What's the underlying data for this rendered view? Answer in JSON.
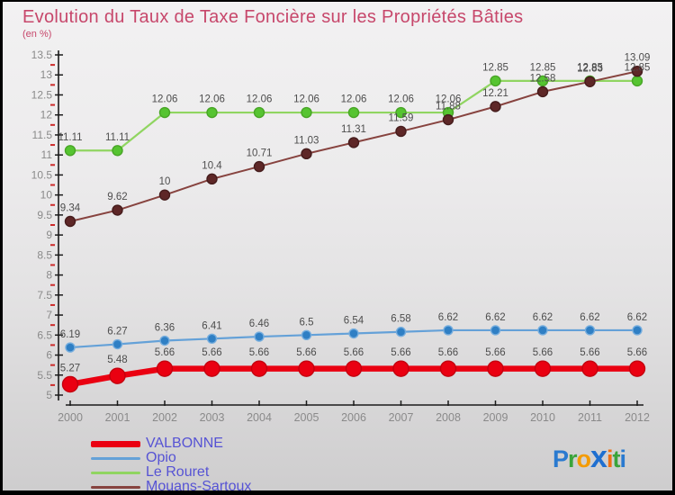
{
  "header": {
    "title": "Evolution du Taux de Taxe Foncière sur les Propriétés Bâties",
    "subtitle": "(en %)",
    "title_color": "#c7476b"
  },
  "chart_data": {
    "type": "line",
    "title": "Evolution du Taux de Taxe Foncière sur les Propriétés Bâties",
    "subtitle": "(en %)",
    "x_labels": [
      "2000",
      "2001",
      "2002",
      "2003",
      "2004",
      "2005",
      "2006",
      "2007",
      "2008",
      "2009",
      "2010",
      "2011",
      "2012"
    ],
    "ylim": [
      5,
      13.5
    ],
    "ytick_step": 0.5,
    "yminor_step": 0.25,
    "grid": false,
    "legend_position": "bottom-left",
    "axis_style": {
      "axis_color": "#1a1a1a",
      "tick_label_color": "#8a8a8a",
      "minor_tick_color": "#cc2a2a",
      "data_label_color": "#4d4d4d"
    },
    "series": [
      {
        "name": "VALBONNE",
        "line_color": "#ea0011",
        "marker_fill": "#ea0011",
        "marker_stroke": "#c4000e",
        "line_width": 6.5,
        "marker_radius": 8.5,
        "values": [
          5.27,
          5.48,
          5.66,
          5.66,
          5.66,
          5.66,
          5.66,
          5.66,
          5.66,
          5.66,
          5.66,
          5.66,
          5.66
        ]
      },
      {
        "name": "Opio",
        "line_color": "#64a1d8",
        "marker_fill": "#2f7fc4",
        "marker_stroke": "#77aede",
        "line_width": 2.2,
        "marker_radius": 5,
        "values": [
          6.19,
          6.27,
          6.36,
          6.41,
          6.46,
          6.5,
          6.54,
          6.58,
          6.62,
          6.62,
          6.62,
          6.62,
          6.62
        ]
      },
      {
        "name": "Le Rouret",
        "line_color": "#90d561",
        "marker_fill": "#56c431",
        "marker_stroke": "#48a526",
        "line_width": 2.2,
        "marker_radius": 5.5,
        "values": [
          11.11,
          11.11,
          12.06,
          12.06,
          12.06,
          12.06,
          12.06,
          12.06,
          12.06,
          12.85,
          12.85,
          12.85,
          12.85
        ]
      },
      {
        "name": "Mouans-Sartoux",
        "line_color": "#87433f",
        "marker_fill": "#5e2727",
        "marker_stroke": "#451c1c",
        "line_width": 2,
        "marker_radius": 5.5,
        "values": [
          9.34,
          9.62,
          10,
          10.4,
          10.71,
          11.03,
          11.31,
          11.59,
          11.88,
          12.21,
          12.58,
          12.83,
          13.09
        ]
      }
    ]
  },
  "legend": {
    "text_color": "#5653d4"
  },
  "logo": {
    "text": "Proxiti",
    "letters": [
      {
        "ch": "P",
        "color": "#2a7ad0"
      },
      {
        "ch": "r",
        "color": "#3ba43b"
      },
      {
        "ch": "o",
        "color": "#f49b00"
      },
      {
        "ch": "x",
        "color": "#1f6fd0"
      },
      {
        "ch": "i",
        "color": "#ef7013"
      },
      {
        "ch": "t",
        "color": "#3ba43b"
      },
      {
        "ch": "i",
        "color": "#2a7ad0"
      }
    ]
  }
}
